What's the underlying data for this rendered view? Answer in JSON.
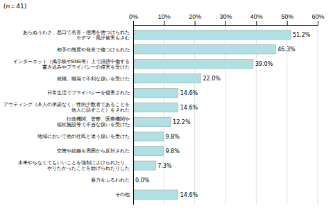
{
  "chart_data": {
    "type": "bar",
    "orientation": "horizontal",
    "annotations": [
      "(n＝41)"
    ],
    "categories": [
      "あらぬうわさ、悪口で名誉・信用を傍つけられた\n※デマ・風評被害もさむ",
      "相手の態度や発言で傷つけられた",
      "インターネット（掲示板やSNS等）上で誹謗中傷する\n書き込みやプライバシーの侵害を受けた",
      "就職、職場で不利な扱いを受けた",
      "日常生活でプライバシーを侵害された",
      "アウティング（本人の承諾なく、性的少数者であることを\n他人に話すこと）をされた",
      "行政機関、警察、医療機関や\n福祉施設等で不当な扱いを受けた",
      "地域において他の住民と違う扱いを受けた",
      "交際や結婚を周囲から反対された",
      "本来やらなくてもいいことを強制にさけられたり、\nやりたかったことを妨げられたりした",
      "暴力をふるわれた",
      "その他"
    ],
    "values": [
      51.2,
      46.3,
      39.0,
      22.0,
      14.6,
      14.6,
      12.2,
      9.8,
      9.8,
      7.3,
      0.0,
      14.6
    ],
    "value_labels": [
      "51.2%",
      "46.3%",
      "39.0%",
      "22.0%",
      "14.6%",
      "14.6%",
      "12.2%",
      "9.8%",
      "9.8%",
      "7.3%",
      "0.0%",
      "14.6%"
    ],
    "data_labels": true,
    "color": "#b0e0e3",
    "xlim": [
      0,
      60
    ],
    "xticks": [
      {
        "value": 0,
        "label": "0%"
      },
      {
        "value": 10,
        "label": "10%"
      },
      {
        "value": 20,
        "label": "20%"
      },
      {
        "value": 30,
        "label": "30%"
      },
      {
        "value": 40,
        "label": "40%"
      },
      {
        "value": 50,
        "label": "50%"
      },
      {
        "value": 60,
        "label": "60%"
      }
    ],
    "grid": true
  }
}
